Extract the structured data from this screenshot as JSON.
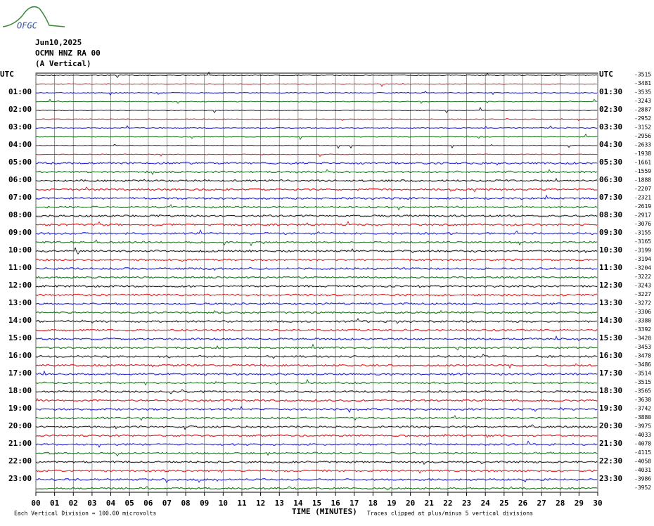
{
  "header": {
    "logo": "OFGC",
    "date": "Jun10,2025",
    "station": "OCMN HNZ RA 00",
    "component": "(A Vertical)"
  },
  "left_labels": [
    "UTC",
    "01:00",
    "02:00",
    "03:00",
    "04:00",
    "05:00",
    "06:00",
    "07:00",
    "08:00",
    "09:00",
    "10:00",
    "11:00",
    "12:00",
    "13:00",
    "14:00",
    "15:00",
    "16:00",
    "17:00",
    "18:00",
    "19:00",
    "20:00",
    "21:00",
    "22:00",
    "23:00"
  ],
  "right_labels": [
    "UTC",
    "01:30",
    "02:30",
    "03:30",
    "04:30",
    "05:30",
    "06:30",
    "07:30",
    "08:30",
    "09:30",
    "10:30",
    "11:30",
    "12:30",
    "13:30",
    "14:30",
    "15:30",
    "16:30",
    "17:30",
    "18:30",
    "19:30",
    "20:30",
    "21:30",
    "22:30",
    "23:30"
  ],
  "trace_means": [
    -3515,
    -3481,
    -3535,
    -3243,
    -2887,
    -2952,
    -3152,
    -2956,
    -2633,
    -1938,
    -1661,
    -1559,
    -1888,
    -2207,
    -2321,
    -2619,
    -2917,
    -3076,
    -3155,
    -3165,
    -3199,
    -3194,
    -3204,
    -3222,
    -3243,
    -3227,
    -3272,
    -3306,
    -3380,
    -3392,
    -3420,
    -3453,
    -3478,
    -3486,
    -3514,
    -3515,
    -3565,
    -3630,
    -3742,
    -3880,
    -3975,
    -4033,
    -4078,
    -4115,
    -4058,
    -4031,
    -3986,
    -3952
  ],
  "x_axis": {
    "labels": [
      "00",
      "01",
      "02",
      "03",
      "04",
      "05",
      "06",
      "07",
      "08",
      "09",
      "10",
      "11",
      "12",
      "13",
      "14",
      "15",
      "16",
      "17",
      "18",
      "19",
      "20",
      "21",
      "22",
      "23",
      "24",
      "25",
      "26",
      "27",
      "28",
      "29",
      "30"
    ],
    "title": "TIME (MINUTES)"
  },
  "footer": {
    "division": "Each Vertical Division =  100.00 microvolts",
    "clipping": "Traces clipped at plus/minus 5 vertical divisions"
  }
}
